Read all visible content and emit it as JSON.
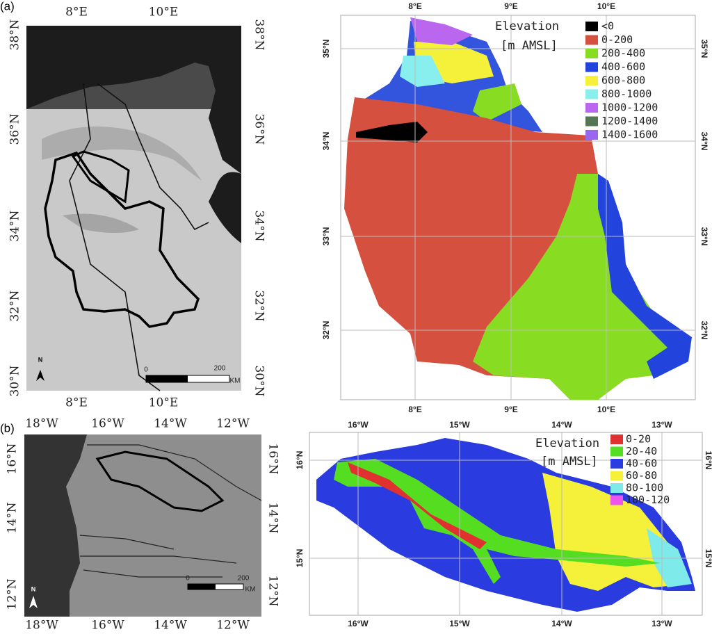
{
  "panels": [
    {
      "label": "(a)",
      "left_map": {
        "top_ticks": [
          "8°E",
          "10°E"
        ],
        "bottom_ticks": [
          "8°E",
          "10°E"
        ],
        "left_ticks": [
          "38°N",
          "36°N",
          "34°N",
          "32°N",
          "30°N"
        ],
        "right_ticks": [
          "38°N",
          "36°N",
          "34°N",
          "32°N",
          "30°N"
        ],
        "north": "N",
        "scale": [
          "0",
          "200",
          "KM"
        ]
      },
      "right_map": {
        "top_ticks": [
          "8°E",
          "9°E",
          "10°E"
        ],
        "bottom_ticks": [
          "8°E",
          "9°E",
          "10°E"
        ],
        "left_ticks": [
          "35°N",
          "34°N",
          "33°N",
          "32°N"
        ],
        "right_ticks": [
          "35°N",
          "34°N",
          "33°N",
          "32°N"
        ],
        "legend": {
          "title": [
            "Elevation",
            "[m AMSL]"
          ],
          "items": [
            {
              "label": "<0",
              "color": "#000000"
            },
            {
              "label": "0-200",
              "color": "#d65040"
            },
            {
              "label": "200-400",
              "color": "#88dd22"
            },
            {
              "label": "400-600",
              "color": "#2244dd"
            },
            {
              "label": "600-800",
              "color": "#f5f03a"
            },
            {
              "label": "800-1000",
              "color": "#88eeee"
            },
            {
              "label": "1000-1200",
              "color": "#bb66ee"
            },
            {
              "label": "1200-1400",
              "color": "#557755"
            },
            {
              "label": "1400-1600",
              "color": "#9966ee"
            }
          ]
        }
      }
    },
    {
      "label": "(b)",
      "left_map": {
        "top_ticks": [
          "18°W",
          "16°W",
          "14°W",
          "12°W"
        ],
        "bottom_ticks": [
          "18°W",
          "16°W",
          "14°W",
          "12°W"
        ],
        "left_ticks": [
          "16°N",
          "14°N",
          "12°N"
        ],
        "right_ticks": [
          "16°N",
          "14°N",
          "12°N"
        ],
        "north": "N",
        "scale": [
          "0",
          "200",
          "KM"
        ]
      },
      "right_map": {
        "top_ticks": [
          "16°W",
          "15°W",
          "14°W",
          "13°W"
        ],
        "bottom_ticks": [
          "16°W",
          "15°W",
          "14°W",
          "13°W"
        ],
        "left_ticks": [
          "16°N",
          "15°N"
        ],
        "right_ticks": [
          "16°N",
          "15°N"
        ],
        "legend": {
          "title": [
            "Elevation",
            "[m AMSL]"
          ],
          "items": [
            {
              "label": "0-20",
              "color": "#e03030"
            },
            {
              "label": "20-40",
              "color": "#55dd22"
            },
            {
              "label": "40-60",
              "color": "#2a3be0"
            },
            {
              "label": "60-80",
              "color": "#f5f03a"
            },
            {
              "label": "80-100",
              "color": "#7feaea"
            },
            {
              "label": "100-120",
              "color": "#ee55ee"
            }
          ]
        }
      }
    }
  ]
}
